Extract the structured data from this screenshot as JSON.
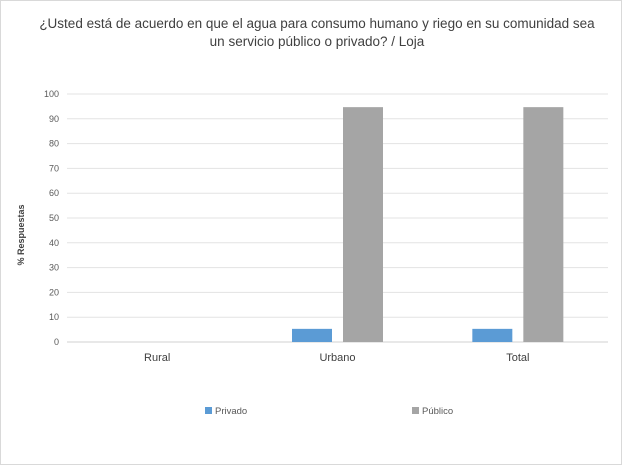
{
  "chart_data": {
    "type": "bar",
    "title_lines": [
      "¿Usted está de acuerdo en que el agua para consumo humano y riego en su comunidad sea",
      "un servicio público o privado? / Loja"
    ],
    "xlabel": "",
    "ylabel": "% Respuestas",
    "categories": [
      "Rural",
      "Urbano",
      "Total"
    ],
    "y_ticks": [
      "0",
      "10",
      "20",
      "30",
      "40",
      "50",
      "60",
      "70",
      "80",
      "90",
      "100"
    ],
    "ylim": [
      0,
      100
    ],
    "grid": true,
    "legend_position": "bottom",
    "series": [
      {
        "name": "Privado",
        "color": "#5b9bd5",
        "values": [
          0,
          5.3,
          5.3
        ]
      },
      {
        "name": "Público",
        "color": "#a5a5a5",
        "values": [
          0,
          94.7,
          94.7
        ]
      }
    ]
  }
}
